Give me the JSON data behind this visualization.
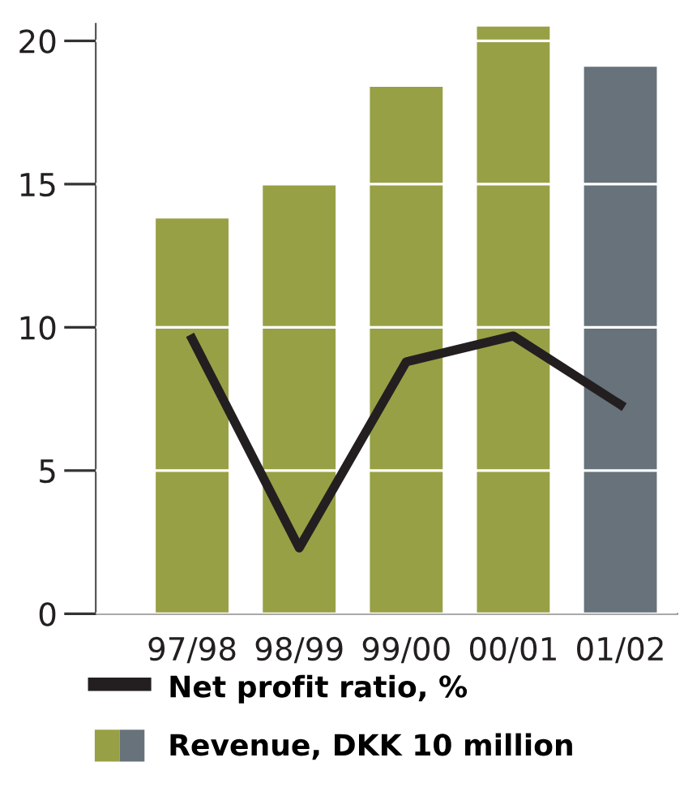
{
  "chart_data": {
    "type": "bar",
    "categories": [
      "97/98",
      "98/99",
      "99/00",
      "00/01",
      "01/02"
    ],
    "series": [
      {
        "name": "Net profit ratio, %",
        "type": "line",
        "color": "#231f20",
        "values": [
          9.6,
          2.3,
          8.8,
          9.7,
          7.3
        ]
      },
      {
        "name": "Revenue, DKK 10 million",
        "colors": [
          "#98a045",
          "#98a045",
          "#98a045",
          "#98a045",
          "#67727a"
        ],
        "values": [
          13.8,
          15.0,
          18.4,
          20.5,
          19.1
        ]
      }
    ],
    "ylim": [
      0,
      20.6
    ],
    "yticks": [
      0,
      5,
      10,
      15,
      20
    ],
    "grid": "y",
    "legend": "bottom"
  }
}
